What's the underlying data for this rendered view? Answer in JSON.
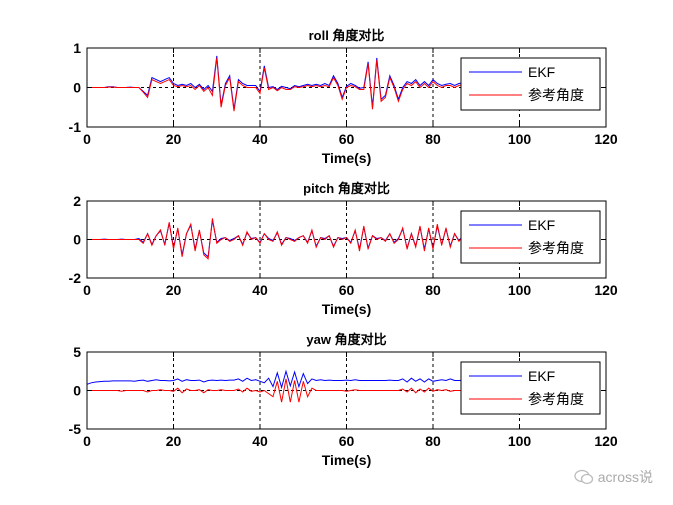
{
  "chart_data": [
    {
      "type": "line",
      "title": "roll 角度对比",
      "xlabel": "Time(s)",
      "ylabel": "",
      "xlim": [
        0,
        120
      ],
      "ylim": [
        -1,
        1
      ],
      "xticks": [
        0,
        20,
        40,
        60,
        80,
        100,
        120
      ],
      "yticks": [
        -1,
        0,
        1
      ],
      "grid": "dashed at x ticks and y=0",
      "legend": "top-right",
      "x": [
        0,
        1,
        2,
        3,
        4,
        5,
        6,
        7,
        8,
        9,
        10,
        11,
        12,
        13,
        14,
        15,
        16,
        17,
        18,
        19,
        20,
        21,
        22,
        23,
        24,
        25,
        26,
        27,
        28,
        29,
        30,
        31,
        32,
        33,
        34,
        35,
        36,
        37,
        38,
        39,
        40,
        41,
        42,
        43,
        44,
        45,
        46,
        47,
        48,
        49,
        50,
        51,
        52,
        53,
        54,
        55,
        56,
        57,
        58,
        59,
        60,
        61,
        62,
        63,
        64,
        65,
        66,
        67,
        68,
        69,
        70,
        71,
        72,
        73,
        74,
        75,
        76,
        77,
        78,
        79,
        80,
        81,
        82,
        83,
        84,
        85,
        86,
        87,
        88
      ],
      "series": [
        {
          "name": "EKF",
          "color": "#0000ff",
          "values": [
            0,
            0,
            0,
            0,
            0,
            0.02,
            0.02,
            0,
            0,
            0,
            0.01,
            0,
            0,
            -0.1,
            -0.2,
            0.25,
            0.2,
            0.15,
            0.2,
            0.25,
            0.1,
            0.05,
            0.08,
            0.05,
            0.1,
            0,
            0.08,
            -0.05,
            0.05,
            -0.1,
            0.8,
            -0.45,
            0.1,
            0.3,
            -0.55,
            0.2,
            0.1,
            0.05,
            0.05,
            0.05,
            -0.1,
            0.55,
            0,
            0.02,
            -0.05,
            0.03,
            0,
            -0.03,
            0.05,
            0.02,
            0.05,
            0.08,
            0.05,
            0.08,
            0.05,
            0.1,
            0.05,
            0.3,
            0.1,
            -0.25,
            0.03,
            0.1,
            0.05,
            -0.02,
            0,
            0.65,
            -0.5,
            0.75,
            -0.3,
            -0.2,
            0.3,
            0.05,
            -0.3,
            0,
            0.15,
            0.1,
            0.2,
            0.05,
            0.15,
            0.05,
            0.2,
            0.1,
            0.05,
            0.08,
            0.1,
            0.05,
            0.1,
            0.12,
            0.1
          ]
        },
        {
          "name": "参考角度",
          "color": "#ff0000",
          "values": [
            0,
            0,
            0,
            0,
            0,
            0.01,
            0.01,
            0,
            0,
            0,
            0,
            0,
            0,
            -0.12,
            -0.25,
            0.2,
            0.15,
            0.1,
            0.15,
            0.2,
            0.05,
            0.02,
            0.05,
            0.02,
            0.05,
            -0.05,
            0.05,
            -0.1,
            0,
            -0.2,
            0.75,
            -0.5,
            0.05,
            0.25,
            -0.6,
            0.15,
            0.05,
            0,
            0,
            0,
            -0.15,
            0.5,
            -0.05,
            0,
            -0.08,
            0,
            -0.05,
            -0.05,
            0.02,
            0,
            0.02,
            0.05,
            0.02,
            0.05,
            0.02,
            0.05,
            0.02,
            0.25,
            0.05,
            -0.3,
            0,
            0.05,
            0.02,
            -0.05,
            -0.05,
            0.6,
            -0.55,
            0.7,
            -0.35,
            -0.25,
            0.25,
            0,
            -0.35,
            -0.05,
            0.1,
            0.05,
            0.15,
            0,
            0.1,
            0,
            0.15,
            0.05,
            0,
            0.05,
            0.05,
            0,
            0.05,
            0.08,
            0.05
          ]
        }
      ]
    },
    {
      "type": "line",
      "title": "pitch 角度对比",
      "xlabel": "Time(s)",
      "ylabel": "",
      "xlim": [
        0,
        120
      ],
      "ylim": [
        -2,
        2
      ],
      "xticks": [
        0,
        20,
        40,
        60,
        80,
        100,
        120
      ],
      "yticks": [
        -2,
        0,
        2
      ],
      "grid": "dashed at x ticks and y=0",
      "legend": "top-right",
      "x": [
        0,
        1,
        2,
        3,
        4,
        5,
        6,
        7,
        8,
        9,
        10,
        11,
        12,
        13,
        14,
        15,
        16,
        17,
        18,
        19,
        20,
        21,
        22,
        23,
        24,
        25,
        26,
        27,
        28,
        29,
        30,
        31,
        32,
        33,
        34,
        35,
        36,
        37,
        38,
        39,
        40,
        41,
        42,
        43,
        44,
        45,
        46,
        47,
        48,
        49,
        50,
        51,
        52,
        53,
        54,
        55,
        56,
        57,
        58,
        59,
        60,
        61,
        62,
        63,
        64,
        65,
        66,
        67,
        68,
        69,
        70,
        71,
        72,
        73,
        74,
        75,
        76,
        77,
        78,
        79,
        80,
        81,
        82,
        83,
        84,
        85,
        86,
        87,
        88
      ],
      "series": [
        {
          "name": "EKF",
          "color": "#0000ff",
          "values": [
            0,
            0,
            0,
            0,
            0.02,
            0,
            0,
            0,
            0.02,
            0,
            0,
            0,
            0.05,
            -0.15,
            0.3,
            -0.25,
            0.2,
            0.45,
            -0.25,
            0.85,
            -0.4,
            0.55,
            -0.8,
            0.3,
            0.75,
            -0.5,
            0.45,
            -0.7,
            -0.9,
            1.0,
            -0.15,
            0.05,
            0.1,
            -0.05,
            0.05,
            0.2,
            -0.25,
            0.35,
            0.05,
            0.1,
            -0.15,
            0.3,
            0.05,
            -0.05,
            0.35,
            -0.25,
            0.1,
            0.05,
            -0.05,
            0.1,
            0.2,
            -0.15,
            0.45,
            -0.35,
            0.1,
            0.05,
            0.2,
            -0.35,
            0.1,
            0.05,
            0.1,
            -0.15,
            0.45,
            -0.5,
            0.65,
            -0.45,
            0.2,
            0.05,
            0.1,
            -0.05,
            0.3,
            -0.15,
            0.05,
            0.55,
            -0.45,
            0.3,
            -0.35,
            0.65,
            -0.5,
            0.55,
            -0.45,
            0.7,
            -0.25,
            0.55,
            -0.35,
            0.3,
            -0.05,
            0.2,
            0.05
          ]
        },
        {
          "name": "参考角度",
          "color": "#ff0000",
          "values": [
            0,
            0,
            0,
            0,
            0,
            0,
            0,
            0,
            0,
            0,
            0,
            0,
            0,
            -0.2,
            0.3,
            -0.3,
            0.2,
            0.5,
            -0.3,
            0.9,
            -0.5,
            0.6,
            -0.9,
            0.3,
            0.8,
            -0.6,
            0.5,
            -0.8,
            -1.0,
            1.1,
            -0.2,
            0,
            0.1,
            -0.1,
            0,
            0.2,
            -0.3,
            0.4,
            0,
            0.1,
            -0.2,
            0.3,
            0,
            -0.1,
            0.4,
            -0.3,
            0.1,
            0,
            -0.1,
            0.1,
            0.2,
            -0.2,
            0.5,
            -0.4,
            0.1,
            0,
            0.2,
            -0.4,
            0.1,
            0,
            0.1,
            -0.2,
            0.5,
            -0.6,
            0.7,
            -0.5,
            0.2,
            0,
            0.1,
            -0.1,
            0.3,
            -0.2,
            0,
            0.6,
            -0.5,
            0.3,
            -0.4,
            0.7,
            -0.6,
            0.6,
            -0.5,
            0.8,
            -0.3,
            0.6,
            -0.4,
            0.3,
            -0.1,
            0.2,
            0
          ]
        }
      ]
    },
    {
      "type": "line",
      "title": "yaw 角度对比",
      "xlabel": "Time(s)",
      "ylabel": "",
      "xlim": [
        0,
        120
      ],
      "ylim": [
        -5,
        5
      ],
      "xticks": [
        0,
        20,
        40,
        60,
        80,
        100,
        120
      ],
      "yticks": [
        -5,
        0,
        5
      ],
      "grid": "dashed at x ticks and y=0",
      "legend": "top-right",
      "x": [
        0,
        1,
        2,
        3,
        4,
        5,
        6,
        7,
        8,
        9,
        10,
        11,
        12,
        13,
        14,
        15,
        16,
        17,
        18,
        19,
        20,
        21,
        22,
        23,
        24,
        25,
        26,
        27,
        28,
        29,
        30,
        31,
        32,
        33,
        34,
        35,
        36,
        37,
        38,
        39,
        40,
        41,
        42,
        43,
        44,
        45,
        46,
        47,
        48,
        49,
        50,
        51,
        52,
        53,
        54,
        55,
        56,
        57,
        58,
        59,
        60,
        61,
        62,
        63,
        64,
        65,
        66,
        67,
        68,
        69,
        70,
        71,
        72,
        73,
        74,
        75,
        76,
        77,
        78,
        79,
        80,
        81,
        82,
        83,
        84,
        85,
        86,
        87,
        88
      ],
      "series": [
        {
          "name": "EKF",
          "color": "#0000ff",
          "values": [
            0.8,
            1.0,
            1.1,
            1.15,
            1.2,
            1.2,
            1.25,
            1.25,
            1.25,
            1.25,
            1.25,
            1.2,
            1.3,
            1.35,
            1.2,
            1.3,
            1.4,
            1.3,
            1.3,
            1.25,
            1.3,
            1.5,
            1.2,
            1.4,
            1.3,
            1.3,
            1.35,
            1.1,
            1.3,
            1.35,
            1.3,
            1.35,
            1.3,
            1.35,
            1.35,
            1.5,
            1.2,
            1.6,
            1.3,
            1.4,
            1.2,
            1.0,
            1.6,
            0.5,
            2.3,
            0.4,
            2.5,
            0.6,
            2.4,
            0.5,
            2.2,
            0.9,
            1.5,
            1.3,
            1.4,
            1.3,
            1.35,
            1.3,
            1.3,
            1.3,
            1.35,
            1.3,
            1.4,
            1.3,
            1.3,
            1.3,
            1.3,
            1.3,
            1.3,
            1.3,
            1.35,
            1.3,
            1.3,
            1.5,
            1.1,
            1.6,
            1.2,
            1.5,
            1.1,
            1.5,
            1.2,
            1.3,
            1.4,
            1.3,
            1.5,
            1.3,
            1.3,
            1.35,
            1.3
          ]
        },
        {
          "name": "参考角度",
          "color": "#ff0000",
          "values": [
            0,
            0,
            0,
            0,
            0,
            0,
            0,
            0,
            -0.1,
            0,
            0,
            0,
            0,
            0,
            -0.2,
            0,
            0,
            0.1,
            0,
            0,
            -0.1,
            0.3,
            -0.3,
            0.2,
            0,
            0,
            0.1,
            -0.3,
            0.1,
            0,
            0,
            0.1,
            0,
            0,
            0,
            0.2,
            -0.2,
            0.3,
            -0.1,
            0,
            -0.2,
            0,
            -0.4,
            -0.8,
            1.2,
            -1.5,
            1.5,
            -1.5,
            1.3,
            -1.5,
            1.2,
            -0.8,
            0.3,
            0,
            0,
            0,
            0,
            0,
            0,
            0,
            -0.1,
            0,
            0.1,
            0,
            0,
            0,
            0,
            0,
            0,
            0,
            0,
            0,
            0,
            0.2,
            -0.2,
            0.3,
            -0.3,
            0.2,
            -0.2,
            0.3,
            -0.1,
            0.1,
            0,
            0.1,
            -0.1,
            0,
            0,
            0,
            0
          ]
        }
      ]
    }
  ],
  "watermark": {
    "text": "across说",
    "icon": "wechat-icon"
  }
}
